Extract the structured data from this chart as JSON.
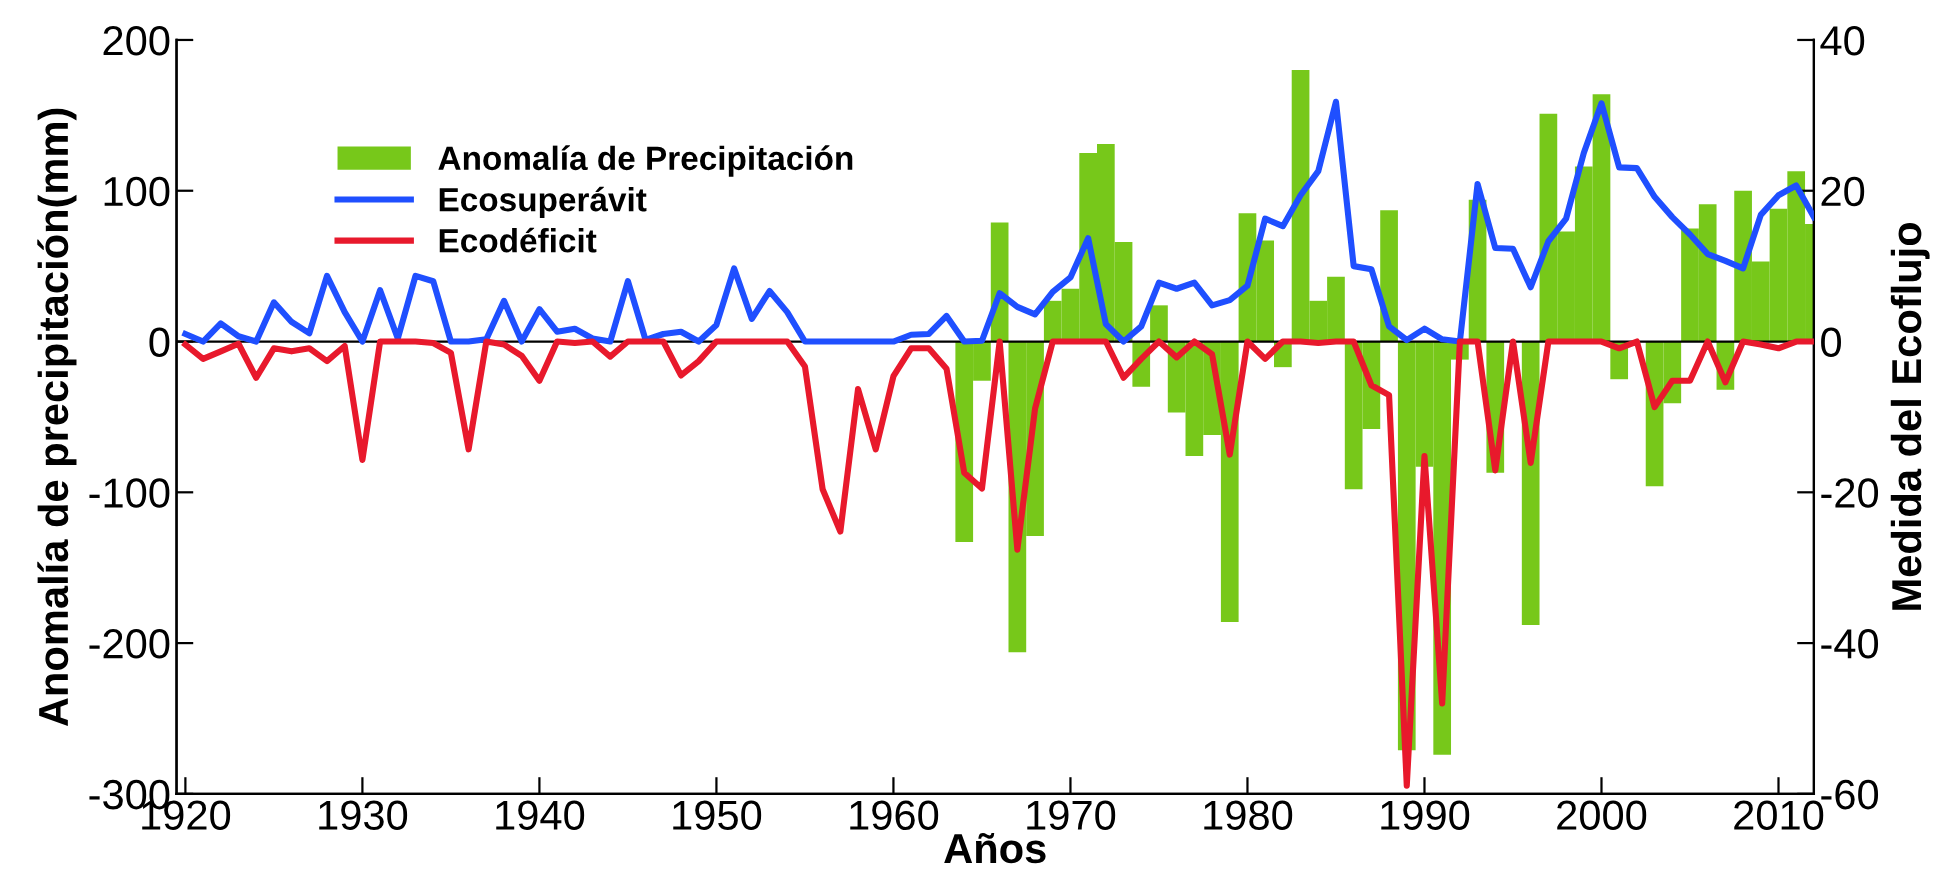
{
  "chart_data": {
    "type": "bar",
    "xlabel": "Años",
    "ylabel": "Anomalía de precipitación(mm)",
    "y2label": "Medida del Ecoflujo",
    "xlim": [
      1919.5,
      2012
    ],
    "xticks": [
      1920,
      1930,
      1940,
      1950,
      1960,
      1970,
      1980,
      1990,
      2000,
      2010
    ],
    "ylim": [
      -300,
      200
    ],
    "yticks": [
      -300,
      -200,
      -100,
      0,
      100,
      200
    ],
    "y2lim": [
      -60,
      40
    ],
    "y2ticks": [
      -60,
      -40,
      -20,
      0,
      20,
      40
    ],
    "legend": "top left",
    "grid": false,
    "ref_lines": [
      {
        "axis": "y",
        "value": 0,
        "color": "#000000"
      }
    ],
    "series": [
      {
        "name": "Anomalía de Precipitación",
        "color": "#77c81a",
        "x": [
          1964,
          1965,
          1966,
          1967,
          1968,
          1969,
          1970,
          1971,
          1972,
          1973,
          1974,
          1975,
          1976,
          1977,
          1978,
          1979,
          1980,
          1981,
          1982,
          1983,
          1984,
          1985,
          1986,
          1987,
          1988,
          1989,
          1990,
          1991,
          1992,
          1993,
          1994,
          1995,
          1996,
          1997,
          1998,
          1999,
          2000,
          2001,
          2002,
          2003,
          2004,
          2005,
          2006,
          2007,
          2008,
          2009,
          2010,
          2011,
          2012
        ],
        "values": [
          -133,
          -26,
          79,
          -206,
          -129,
          27,
          35,
          125,
          131,
          66,
          -30,
          24,
          -47,
          -76,
          -62,
          -186,
          85,
          67,
          -17,
          180,
          27,
          43,
          -98,
          -58,
          87,
          -271,
          -83,
          -274,
          -12,
          94,
          -87,
          0,
          -188,
          151,
          73,
          116,
          164,
          -25,
          null,
          -96,
          -41,
          75,
          91,
          -32,
          100,
          53,
          88,
          113,
          78
        ]
      },
      {
        "name": "Ecosuperávit",
        "type": "line",
        "axis": "y2",
        "color": "#1f4fff",
        "x": [
          1920,
          1921,
          1922,
          1923,
          1924,
          1925,
          1926,
          1927,
          1928,
          1929,
          1930,
          1931,
          1932,
          1933,
          1934,
          1935,
          1936,
          1937,
          1938,
          1939,
          1940,
          1941,
          1942,
          1943,
          1944,
          1945,
          1946,
          1947,
          1948,
          1949,
          1950,
          1951,
          1952,
          1953,
          1954,
          1955,
          1956,
          1957,
          1958,
          1959,
          1960,
          1961,
          1962,
          1963,
          1964,
          1965,
          1966,
          1967,
          1968,
          1969,
          1970,
          1971,
          1972,
          1973,
          1974,
          1975,
          1976,
          1977,
          1978,
          1979,
          1980,
          1981,
          1982,
          1983,
          1984,
          1985,
          1986,
          1987,
          1988,
          1989,
          1990,
          1991,
          1992,
          1993,
          1994,
          1995,
          1996,
          1997,
          1998,
          1999,
          2000,
          2001,
          2002,
          2003,
          2004,
          2005,
          2006,
          2007,
          2008,
          2009,
          2010,
          2011,
          2012
        ],
        "values": [
          1.0,
          0,
          2.4,
          0.7,
          0,
          5.2,
          2.6,
          1.1,
          8.7,
          3.9,
          0,
          6.8,
          0.4,
          8.7,
          8.0,
          0,
          0,
          0.3,
          5.4,
          0,
          4.3,
          1.3,
          1.7,
          0.4,
          0,
          8.0,
          0.2,
          1.0,
          1.3,
          0,
          2.2,
          9.7,
          3.0,
          6.7,
          3.9,
          0,
          0,
          0,
          0,
          0,
          0,
          0.9,
          1.0,
          3.4,
          0,
          0.1,
          6.4,
          4.6,
          3.6,
          6.6,
          8.5,
          13.7,
          2.3,
          0,
          2.0,
          7.8,
          7.0,
          7.8,
          4.8,
          5.5,
          7.4,
          16.3,
          15.3,
          19.4,
          22.6,
          31.8,
          10.0,
          9.6,
          2.0,
          0.2,
          1.7,
          0.3,
          0,
          20.9,
          12.4,
          12.3,
          7.2,
          13.3,
          16.3,
          25.0,
          31.6,
          23.1,
          23.0,
          19.2,
          16.5,
          14.2,
          11.6,
          10.7,
          9.7,
          16.8,
          19.4,
          20.7,
          16.5
        ]
      },
      {
        "name": "Ecodéficit",
        "type": "line",
        "axis": "y2",
        "color": "#e8192c",
        "x": [
          1920,
          1921,
          1922,
          1923,
          1924,
          1925,
          1926,
          1927,
          1928,
          1929,
          1930,
          1931,
          1932,
          1933,
          1934,
          1935,
          1936,
          1937,
          1938,
          1939,
          1940,
          1941,
          1942,
          1943,
          1944,
          1945,
          1946,
          1947,
          1948,
          1949,
          1950,
          1951,
          1952,
          1953,
          1954,
          1955,
          1956,
          1957,
          1958,
          1959,
          1960,
          1961,
          1962,
          1963,
          1964,
          1965,
          1966,
          1967,
          1968,
          1969,
          1970,
          1971,
          1972,
          1973,
          1974,
          1975,
          1976,
          1977,
          1978,
          1979,
          1980,
          1981,
          1982,
          1983,
          1984,
          1985,
          1986,
          1987,
          1988,
          1989,
          1990,
          1991,
          1992,
          1993,
          1994,
          1995,
          1996,
          1997,
          1998,
          1999,
          2000,
          2001,
          2002,
          2003,
          2004,
          2005,
          2006,
          2007,
          2008,
          2009,
          2010,
          2011,
          2012
        ],
        "values": [
          -0.4,
          -2.3,
          -1.3,
          -0.3,
          -4.8,
          -0.9,
          -1.3,
          -0.9,
          -2.6,
          -0.6,
          -15.7,
          0,
          0,
          0,
          -0.2,
          -1.5,
          -14.3,
          0,
          -0.4,
          -1.9,
          -5.2,
          0,
          -0.2,
          0,
          -2.0,
          0,
          0,
          0,
          -4.5,
          -2.6,
          0,
          0,
          0,
          0,
          0,
          -3.3,
          -19.6,
          -25.2,
          -6.3,
          -14.3,
          -4.6,
          -0.9,
          -0.9,
          -3.6,
          -17.4,
          -19.5,
          0,
          -27.6,
          -8.9,
          0,
          0,
          0,
          0,
          -4.8,
          -2.3,
          0,
          -2.1,
          0,
          -1.7,
          -15.0,
          0,
          -2.3,
          0,
          0,
          -0.2,
          0,
          0,
          -5.8,
          -7.1,
          -58.9,
          -15.2,
          -48.0,
          0,
          0,
          -17.1,
          0,
          -16.1,
          0,
          0,
          0,
          0,
          -0.9,
          0,
          -8.7,
          -5.2,
          -5.2,
          0,
          -5.4,
          0,
          -0.4,
          -0.9,
          0,
          0
        ]
      }
    ]
  }
}
